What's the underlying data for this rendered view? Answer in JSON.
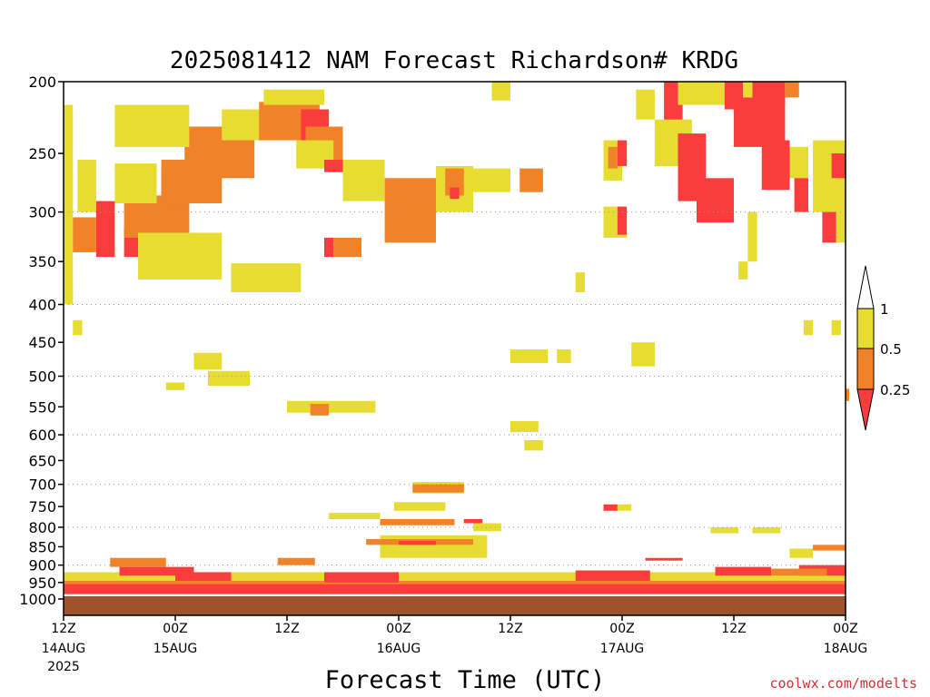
{
  "chart_data": {
    "type": "heatmap",
    "title": "2025081412 NAM Forecast Richardson# KRDG",
    "xlabel": "Forecast Time (UTC)",
    "ylabel": "",
    "credit": "coolwx.com/modelts",
    "y_scale": "log-pressure",
    "ylim_hPa": [
      1000,
      200
    ],
    "y_ticks": [
      "200",
      "250",
      "300",
      "350",
      "400",
      "450",
      "500",
      "550",
      "600",
      "650",
      "700",
      "750",
      "800",
      "850",
      "900",
      "950",
      "1000"
    ],
    "y_gridlines_hPa": [
      300,
      400,
      500,
      600,
      700,
      800,
      900
    ],
    "x_ticks": [
      {
        "label": "12Z",
        "date": "14AUG",
        "year": "2025",
        "hour": 0
      },
      {
        "label": "00Z",
        "date": "15AUG",
        "year": "",
        "hour": 12
      },
      {
        "label": "12Z",
        "date": "",
        "year": "",
        "hour": 24
      },
      {
        "label": "00Z",
        "date": "16AUG",
        "year": "",
        "hour": 36
      },
      {
        "label": "12Z",
        "date": "",
        "year": "",
        "hour": 48
      },
      {
        "label": "00Z",
        "date": "17AUG",
        "year": "",
        "hour": 60
      },
      {
        "label": "12Z",
        "date": "",
        "year": "",
        "hour": 72
      },
      {
        "label": "00Z",
        "date": "18AUG",
        "year": "",
        "hour": 84
      }
    ],
    "xlim_hours": [
      0,
      84
    ],
    "colorbar": {
      "levels": [
        "1",
        "0.5",
        "0.25"
      ],
      "colors": {
        "gt1": "#ffffff",
        "0.5-1": "#e6dc32",
        "0.25-0.5": "#f08228",
        "lt0.25": "#fa3c3c"
      }
    },
    "terrain_color": "#a0522d",
    "cells": [
      {
        "c": "y",
        "h": [
          0,
          1
        ],
        "p": [
          215,
          400
        ]
      },
      {
        "c": "y",
        "h": [
          1.5,
          3.5
        ],
        "p": [
          255,
          300
        ]
      },
      {
        "c": "r",
        "h": [
          3.5,
          5.5
        ],
        "p": [
          290,
          345
        ]
      },
      {
        "c": "o",
        "h": [
          1,
          3.5
        ],
        "p": [
          305,
          340
        ]
      },
      {
        "c": "r",
        "h": [
          6.5,
          9.5
        ],
        "p": [
          315,
          345
        ]
      },
      {
        "c": "o",
        "h": [
          6.5,
          13.5
        ],
        "p": [
          285,
          325
        ]
      },
      {
        "c": "y",
        "h": [
          5.5,
          10
        ],
        "p": [
          258,
          292
        ]
      },
      {
        "c": "r",
        "h": [
          10.5,
          15.5
        ],
        "p": [
          262,
          292
        ]
      },
      {
        "c": "o",
        "h": [
          10.5,
          17
        ],
        "p": [
          255,
          292
        ]
      },
      {
        "c": "r",
        "h": [
          14,
          19.5
        ],
        "p": [
          235,
          262
        ]
      },
      {
        "c": "o",
        "h": [
          13,
          20.5
        ],
        "p": [
          230,
          270
        ]
      },
      {
        "c": "y",
        "h": [
          5.5,
          13.5
        ],
        "p": [
          215,
          245
        ]
      },
      {
        "c": "y",
        "h": [
          17,
          21.5
        ],
        "p": [
          218,
          240
        ]
      },
      {
        "c": "y",
        "h": [
          8,
          17
        ],
        "p": [
          320,
          370
        ]
      },
      {
        "c": "y",
        "h": [
          18,
          25.5
        ],
        "p": [
          352,
          385
        ]
      },
      {
        "c": "o",
        "h": [
          21,
          27.5
        ],
        "p": [
          213,
          240
        ]
      },
      {
        "c": "y",
        "h": [
          21.5,
          28
        ],
        "p": [
          205,
          215
        ]
      },
      {
        "c": "r",
        "h": [
          25.5,
          28.5
        ],
        "p": [
          218,
          240
        ]
      },
      {
        "c": "o",
        "h": [
          26,
          30
        ],
        "p": [
          230,
          260
        ]
      },
      {
        "c": "y",
        "h": [
          25,
          29
        ],
        "p": [
          240,
          262
        ]
      },
      {
        "c": "r",
        "h": [
          28,
          30
        ],
        "p": [
          255,
          265
        ]
      },
      {
        "c": "y",
        "h": [
          30,
          34.5
        ],
        "p": [
          255,
          290
        ]
      },
      {
        "c": "o",
        "h": [
          34.5,
          40
        ],
        "p": [
          270,
          330
        ]
      },
      {
        "c": "r",
        "h": [
          28,
          29
        ],
        "p": [
          325,
          345
        ]
      },
      {
        "c": "o",
        "h": [
          29,
          32
        ],
        "p": [
          325,
          345
        ]
      },
      {
        "c": "y",
        "h": [
          40,
          44
        ],
        "p": [
          260,
          300
        ]
      },
      {
        "c": "o",
        "h": [
          41,
          43
        ],
        "p": [
          262,
          285
        ]
      },
      {
        "c": "r",
        "h": [
          41.5,
          42.5
        ],
        "p": [
          278,
          288
        ]
      },
      {
        "c": "y",
        "h": [
          44,
          48
        ],
        "p": [
          262,
          282
        ]
      },
      {
        "c": "o",
        "h": [
          49,
          51.5
        ],
        "p": [
          262,
          282
        ]
      },
      {
        "c": "y",
        "h": [
          46,
          48
        ],
        "p": [
          200,
          212
        ]
      },
      {
        "c": "y",
        "h": [
          55,
          56
        ],
        "p": [
          362,
          385
        ]
      },
      {
        "c": "y",
        "h": [
          58,
          60
        ],
        "p": [
          240,
          272
        ]
      },
      {
        "c": "r",
        "h": [
          59.5,
          60.5
        ],
        "p": [
          240,
          260
        ]
      },
      {
        "c": "o",
        "h": [
          58.5,
          59.5
        ],
        "p": [
          245,
          262
        ]
      },
      {
        "c": "y",
        "h": [
          58,
          60.5
        ],
        "p": [
          295,
          325
        ]
      },
      {
        "c": "r",
        "h": [
          59.5,
          60.5
        ],
        "p": [
          295,
          322
        ]
      },
      {
        "c": "y",
        "h": [
          61.5,
          63.5
        ],
        "p": [
          205,
          225
        ]
      },
      {
        "c": "r",
        "h": [
          64.5,
          66.5
        ],
        "p": [
          200,
          235
        ]
      },
      {
        "c": "y",
        "h": [
          63.5,
          67.5
        ],
        "p": [
          225,
          260
        ]
      },
      {
        "c": "r",
        "h": [
          66,
          69
        ],
        "p": [
          235,
          290
        ]
      },
      {
        "c": "r",
        "h": [
          68,
          72
        ],
        "p": [
          270,
          310
        ]
      },
      {
        "c": "y",
        "h": [
          66,
          71
        ],
        "p": [
          200,
          215
        ]
      },
      {
        "c": "r",
        "h": [
          71,
          73
        ],
        "p": [
          200,
          218
        ]
      },
      {
        "c": "r",
        "h": [
          72,
          77.5
        ],
        "p": [
          210,
          245
        ]
      },
      {
        "c": "y",
        "h": [
          73,
          76.5
        ],
        "p": [
          200,
          210
        ]
      },
      {
        "c": "r",
        "h": [
          74,
          77.5
        ],
        "p": [
          200,
          215
        ]
      },
      {
        "c": "o",
        "h": [
          77.5,
          79
        ],
        "p": [
          200,
          210
        ]
      },
      {
        "c": "r",
        "h": [
          75,
          78
        ],
        "p": [
          240,
          280
        ]
      },
      {
        "c": "y",
        "h": [
          78,
          80
        ],
        "p": [
          245,
          270
        ]
      },
      {
        "c": "r",
        "h": [
          78.5,
          80
        ],
        "p": [
          270,
          300
        ]
      },
      {
        "c": "y",
        "h": [
          80.5,
          84
        ],
        "p": [
          240,
          300
        ]
      },
      {
        "c": "r",
        "h": [
          82.5,
          84
        ],
        "p": [
          250,
          270
        ]
      },
      {
        "c": "r",
        "h": [
          81.5,
          83
        ],
        "p": [
          300,
          330
        ]
      },
      {
        "c": "y",
        "h": [
          83,
          84
        ],
        "p": [
          300,
          330
        ]
      },
      {
        "c": "y",
        "h": [
          73.5,
          74.5
        ],
        "p": [
          300,
          350
        ]
      },
      {
        "c": "y",
        "h": [
          72.5,
          73.5
        ],
        "p": [
          350,
          370
        ]
      },
      {
        "c": "y",
        "h": [
          79.5,
          80.5
        ],
        "p": [
          420,
          440
        ]
      },
      {
        "c": "y",
        "h": [
          82.5,
          83.5
        ],
        "p": [
          420,
          440
        ]
      },
      {
        "c": "y",
        "h": [
          0,
          1
        ],
        "p": [
          375,
          400
        ]
      },
      {
        "c": "y",
        "h": [
          1,
          2
        ],
        "p": [
          420,
          440
        ]
      },
      {
        "c": "y",
        "h": [
          14,
          17
        ],
        "p": [
          465,
          490
        ]
      },
      {
        "c": "y",
        "h": [
          15.5,
          20
        ],
        "p": [
          492,
          515
        ]
      },
      {
        "c": "y",
        "h": [
          11,
          13
        ],
        "p": [
          510,
          522
        ]
      },
      {
        "c": "y",
        "h": [
          24,
          33.5
        ],
        "p": [
          540,
          560
        ]
      },
      {
        "c": "o",
        "h": [
          26.5,
          28.5
        ],
        "p": [
          545,
          565
        ]
      },
      {
        "c": "y",
        "h": [
          48,
          52
        ],
        "p": [
          460,
          480
        ]
      },
      {
        "c": "y",
        "h": [
          53,
          54.5
        ],
        "p": [
          460,
          480
        ]
      },
      {
        "c": "y",
        "h": [
          61,
          63.5
        ],
        "p": [
          450,
          485
        ]
      },
      {
        "c": "y",
        "h": [
          48,
          51
        ],
        "p": [
          575,
          595
        ]
      },
      {
        "c": "y",
        "h": [
          49.5,
          51.5
        ],
        "p": [
          610,
          630
        ]
      },
      {
        "c": "o",
        "h": [
          84,
          84
        ],
        "p": [
          520,
          540
        ]
      },
      {
        "c": "y",
        "h": [
          37.5,
          43
        ],
        "p": [
          695,
          720
        ]
      },
      {
        "c": "o",
        "h": [
          37.5,
          43
        ],
        "p": [
          700,
          718
        ]
      },
      {
        "c": "y",
        "h": [
          35.5,
          41
        ],
        "p": [
          740,
          760
        ]
      },
      {
        "c": "y",
        "h": [
          28.5,
          34
        ],
        "p": [
          765,
          780
        ]
      },
      {
        "c": "o",
        "h": [
          34,
          42
        ],
        "p": [
          780,
          795
        ]
      },
      {
        "c": "y",
        "h": [
          34,
          45.5
        ],
        "p": [
          820,
          880
        ]
      },
      {
        "c": "o",
        "h": [
          32.5,
          44
        ],
        "p": [
          830,
          845
        ]
      },
      {
        "c": "r",
        "h": [
          36,
          40
        ],
        "p": [
          835,
          845
        ]
      },
      {
        "c": "y",
        "h": [
          44,
          47
        ],
        "p": [
          790,
          810
        ]
      },
      {
        "c": "r",
        "h": [
          43,
          45
        ],
        "p": [
          780,
          790
        ]
      },
      {
        "c": "r",
        "h": [
          58,
          59.5
        ],
        "p": [
          745,
          760
        ]
      },
      {
        "c": "y",
        "h": [
          59.5,
          61
        ],
        "p": [
          745,
          760
        ]
      },
      {
        "c": "y",
        "h": [
          69.5,
          72.5
        ],
        "p": [
          800,
          815
        ]
      },
      {
        "c": "y",
        "h": [
          74,
          77
        ],
        "p": [
          800,
          815
        ]
      },
      {
        "c": "y",
        "h": [
          78,
          80.5
        ],
        "p": [
          855,
          880
        ]
      },
      {
        "c": "o",
        "h": [
          80.5,
          84
        ],
        "p": [
          845,
          860
        ]
      },
      {
        "c": "r",
        "h": [
          62.5,
          66.5
        ],
        "p": [
          880,
          885
        ]
      },
      {
        "c": "y",
        "h": [
          0,
          84
        ],
        "p": [
          920,
          960
        ]
      },
      {
        "c": "o",
        "h": [
          0,
          84
        ],
        "p": [
          945,
          975
        ]
      },
      {
        "c": "r",
        "h": [
          0,
          84
        ],
        "p": [
          955,
          985
        ]
      },
      {
        "c": "r",
        "h": [
          6,
          14
        ],
        "p": [
          905,
          930
        ]
      },
      {
        "c": "o",
        "h": [
          5,
          11
        ],
        "p": [
          880,
          905
        ]
      },
      {
        "c": "r",
        "h": [
          12,
          18
        ],
        "p": [
          920,
          945
        ]
      },
      {
        "c": "o",
        "h": [
          23,
          27
        ],
        "p": [
          880,
          900
        ]
      },
      {
        "c": "r",
        "h": [
          28,
          36
        ],
        "p": [
          920,
          950
        ]
      },
      {
        "c": "r",
        "h": [
          55,
          63
        ],
        "p": [
          915,
          945
        ]
      },
      {
        "c": "r",
        "h": [
          70,
          76
        ],
        "p": [
          905,
          930
        ]
      },
      {
        "c": "r",
        "h": [
          79,
          84
        ],
        "p": [
          900,
          930
        ]
      },
      {
        "c": "o",
        "h": [
          76,
          82
        ],
        "p": [
          910,
          930
        ]
      }
    ]
  }
}
